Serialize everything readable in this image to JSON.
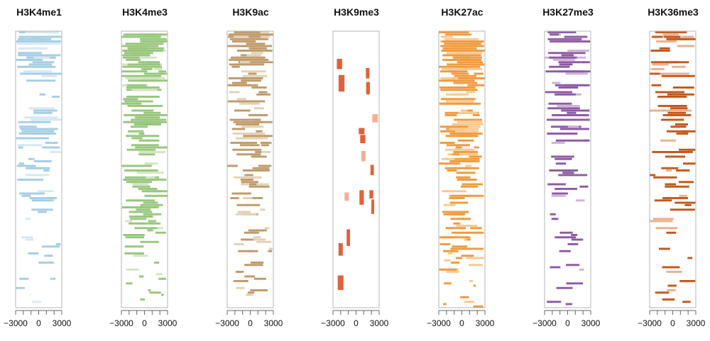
{
  "chart_data": [
    {
      "type": "heatmap",
      "title": "H3K4me1",
      "x_ticks": [
        "−3000",
        "0",
        "3000"
      ],
      "xlim": [
        -3000,
        3000
      ],
      "color": "#a6cee3",
      "light_color": "#d6e8f2",
      "density": 0.55,
      "decay": 0.75
    },
    {
      "type": "heatmap",
      "title": "H3K4me3",
      "x_ticks": [
        "−3000",
        "0",
        "3000"
      ],
      "xlim": [
        -3000,
        3000
      ],
      "color": "#98c67c",
      "light_color": "#cfe5c1",
      "density": 0.8,
      "decay": 0.65
    },
    {
      "type": "heatmap",
      "title": "H3K9ac",
      "x_ticks": [
        "−3000",
        "0",
        "3000"
      ],
      "xlim": [
        -3000,
        3000
      ],
      "color": "#bf9a6a",
      "light_color": "#e3d1b6",
      "density": 0.72,
      "decay": 0.6
    },
    {
      "type": "heatmap",
      "title": "H3K9me3",
      "x_ticks": [
        "−3000",
        "0",
        "3000"
      ],
      "xlim": [
        -3000,
        3000
      ],
      "color": "#e0623a",
      "light_color": "#f3b097",
      "density": 0.05,
      "decay": 0.1
    },
    {
      "type": "heatmap",
      "title": "H3K27ac",
      "x_ticks": [
        "−3000",
        "0",
        "3000"
      ],
      "xlim": [
        -3000,
        3000
      ],
      "color": "#ef9a3f",
      "light_color": "#f7c98f",
      "density": 0.85,
      "decay": 0.55
    },
    {
      "type": "heatmap",
      "title": "H3K27me3",
      "x_ticks": [
        "−3000",
        "0",
        "3000"
      ],
      "xlim": [
        -3000,
        3000
      ],
      "color": "#8e5aa3",
      "light_color": "#cdb3d8",
      "density": 0.4,
      "decay": 0.75
    },
    {
      "type": "heatmap",
      "title": "H3K36me3",
      "x_ticks": [
        "−3000",
        "0",
        "3000"
      ],
      "xlim": [
        -3000,
        3000
      ],
      "color": "#c2571d",
      "light_color": "#eab08c",
      "density": 0.4,
      "decay": 0.8
    }
  ]
}
